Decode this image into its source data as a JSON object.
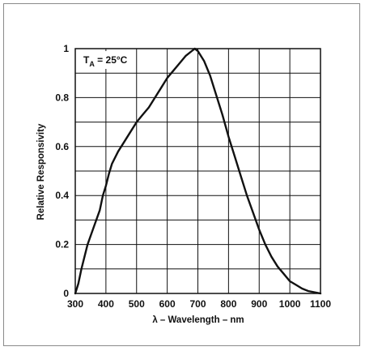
{
  "chart_data": {
    "type": "line",
    "title": "",
    "xlabel": "λ – Wavelength – nm",
    "ylabel": "Relative Responsivity",
    "xlim": [
      300,
      1100
    ],
    "ylim": [
      0,
      1
    ],
    "x_ticks": [
      "300",
      "400",
      "500",
      "600",
      "700",
      "800",
      "900",
      "1000",
      "1100"
    ],
    "y_ticks": [
      "0",
      "0.2",
      "0.4",
      "0.6",
      "0.8",
      "1"
    ],
    "grid": true,
    "annotation": {
      "main": "T",
      "sub": "A",
      "rest": " = 25°C"
    },
    "series": [
      {
        "x": [
          300,
          310,
          320,
          340,
          360,
          380,
          390,
          400,
          410,
          420,
          440,
          460,
          480,
          500,
          520,
          540,
          560,
          580,
          600,
          620,
          640,
          660,
          680,
          690,
          700,
          720,
          740,
          760,
          780,
          800,
          820,
          840,
          860,
          880,
          900,
          920,
          940,
          960,
          980,
          1000,
          1020,
          1040,
          1060,
          1080,
          1100
        ],
        "y": [
          0.0,
          0.04,
          0.1,
          0.2,
          0.27,
          0.34,
          0.4,
          0.44,
          0.49,
          0.53,
          0.58,
          0.62,
          0.66,
          0.7,
          0.73,
          0.76,
          0.8,
          0.84,
          0.88,
          0.91,
          0.94,
          0.97,
          0.99,
          1.0,
          0.99,
          0.95,
          0.89,
          0.81,
          0.73,
          0.64,
          0.56,
          0.48,
          0.4,
          0.33,
          0.26,
          0.2,
          0.15,
          0.11,
          0.08,
          0.05,
          0.035,
          0.02,
          0.01,
          0.005,
          0.0
        ]
      }
    ]
  }
}
